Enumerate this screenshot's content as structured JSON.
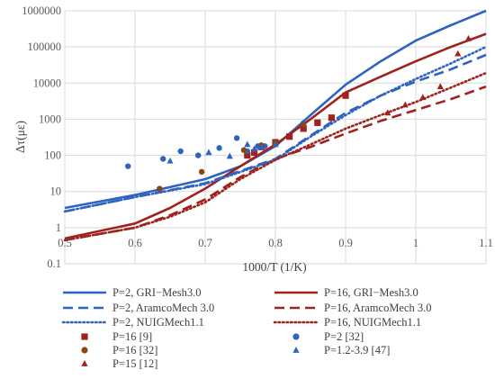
{
  "chart_data": {
    "type": "line",
    "xlabel": "1000/T (1/K)",
    "ylabel": "Δτ(με)",
    "x_scale": "linear",
    "y_scale": "log",
    "xlim": [
      0.5,
      1.1
    ],
    "ylim": [
      0.1,
      1000000
    ],
    "x_ticks": [
      "0.5",
      "0.6",
      "0.7",
      "0.8",
      "0.9",
      "1",
      "1.1"
    ],
    "y_ticks": [
      "0.1",
      "1",
      "10",
      "100",
      "1000",
      "10000",
      "100000",
      "1000000"
    ],
    "grid": true,
    "legend_position": "bottom",
    "series": [
      {
        "name": "P=2, GRI−Mesh3.0",
        "kind": "line",
        "style": "solid",
        "color": "#2f63c0",
        "x": [
          0.5,
          0.6,
          0.7,
          0.75,
          0.8,
          0.85,
          0.9,
          0.95,
          1.0,
          1.05,
          1.1
        ],
        "y": [
          3.5,
          8,
          22,
          50,
          180,
          1300,
          9000,
          40000,
          150000,
          400000,
          1000000
        ]
      },
      {
        "name": "P=16, GRI−Mesh3.0",
        "kind": "line",
        "style": "solid",
        "color": "#a0221c",
        "x": [
          0.5,
          0.6,
          0.65,
          0.7,
          0.75,
          0.8,
          0.85,
          0.9,
          0.95,
          1.0,
          1.05,
          1.1
        ],
        "y": [
          0.5,
          1.3,
          3.5,
          12,
          50,
          200,
          1000,
          5500,
          15000,
          40000,
          100000,
          230000
        ]
      },
      {
        "name": "P=2, AramcoMech 3.0",
        "kind": "line",
        "style": "dashed",
        "color": "#2f63c0",
        "x": [
          0.5,
          0.6,
          0.7,
          0.8,
          0.85,
          0.9,
          0.95,
          1.0,
          1.05,
          1.1
        ],
        "y": [
          2.8,
          7,
          17,
          80,
          350,
          1500,
          4500,
          11000,
          24000,
          60000
        ]
      },
      {
        "name": "P=16, AramcoMech 3.0",
        "kind": "line",
        "style": "dashed",
        "color": "#a0221c",
        "x": [
          0.5,
          0.6,
          0.65,
          0.7,
          0.75,
          0.8,
          0.85,
          0.9,
          0.95,
          1.0,
          1.05,
          1.1
        ],
        "y": [
          0.45,
          1,
          2.2,
          6,
          25,
          80,
          170,
          400,
          900,
          1800,
          3600,
          8000
        ]
      },
      {
        "name": "P=2, NUIGMech1.1",
        "kind": "line",
        "style": "dotted",
        "color": "#2f63c0",
        "x": [
          0.5,
          0.6,
          0.7,
          0.8,
          0.85,
          0.9,
          0.95,
          1.0,
          1.05,
          1.1
        ],
        "y": [
          2.8,
          7,
          16,
          75,
          330,
          1300,
          4500,
          13000,
          35000,
          100000
        ]
      },
      {
        "name": "P=16, NUIGMech1.1",
        "kind": "line",
        "style": "dotted",
        "color": "#a0221c",
        "x": [
          0.5,
          0.6,
          0.65,
          0.7,
          0.75,
          0.8,
          0.85,
          0.9,
          0.95,
          1.0,
          1.05,
          1.1
        ],
        "y": [
          0.45,
          1,
          2,
          5,
          22,
          75,
          200,
          550,
          1300,
          3000,
          7500,
          19000
        ]
      },
      {
        "name": "P=16 [9]",
        "kind": "marker",
        "marker": "square",
        "color": "#a0221c",
        "x": [
          0.76,
          0.77,
          0.78,
          0.8,
          0.82,
          0.84,
          0.86,
          0.88,
          0.9
        ],
        "y": [
          100,
          120,
          170,
          230,
          330,
          550,
          800,
          1100,
          4500
        ]
      },
      {
        "name": "P=2 [32]",
        "kind": "marker",
        "marker": "circle",
        "color": "#2f63c0",
        "x": [
          0.59,
          0.64,
          0.665,
          0.69,
          0.72,
          0.745,
          0.76,
          0.775,
          0.785,
          0.84
        ],
        "y": [
          50,
          80,
          130,
          100,
          160,
          300,
          130,
          180,
          180,
          780
        ]
      },
      {
        "name": "P=16 [32]",
        "kind": "marker",
        "marker": "circle",
        "color": "#8b4513",
        "x": [
          0.635,
          0.695,
          0.755,
          0.78,
          0.8,
          0.84
        ],
        "y": [
          12,
          35,
          140,
          190,
          220,
          700
        ]
      },
      {
        "name": "P=1.2-3.9 [47]",
        "kind": "marker",
        "marker": "triangle",
        "color": "#2f63c0",
        "x": [
          0.65,
          0.705,
          0.735,
          0.76,
          0.77,
          0.78,
          0.8
        ],
        "y": [
          70,
          120,
          95,
          200,
          150,
          170,
          200
        ]
      },
      {
        "name": "P=15 [12]",
        "kind": "marker",
        "marker": "triangle",
        "color": "#a0221c",
        "x": [
          0.96,
          0.985,
          1.01,
          1.035,
          1.06,
          1.075
        ],
        "y": [
          1500,
          2500,
          4000,
          8000,
          65000,
          170000
        ]
      }
    ]
  }
}
